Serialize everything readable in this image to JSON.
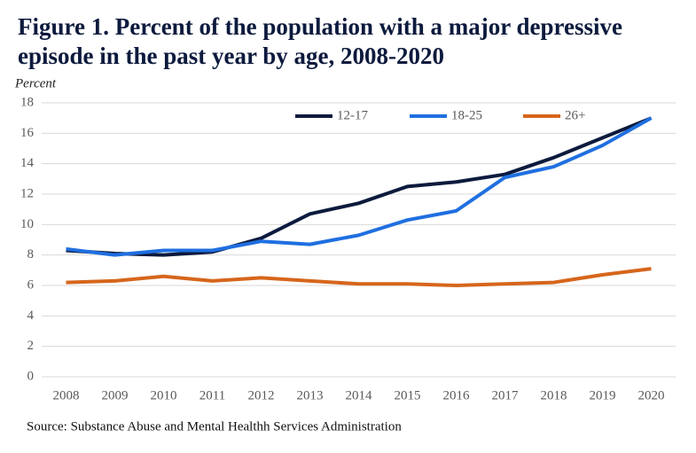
{
  "chart_data": {
    "type": "line",
    "title": "Figure 1. Percent of the population with a major depressive episode in the past year by age, 2008-2020",
    "y_label": "Percent",
    "source": "Source: Substance Abuse and Mental Healthh Services Administration",
    "categories": [
      "2008",
      "2009",
      "2010",
      "2011",
      "2012",
      "2013",
      "2014",
      "2015",
      "2016",
      "2017",
      "2018",
      "2019",
      "2020"
    ],
    "series": [
      {
        "name": "12-17",
        "color": "#0c1a3d",
        "values": [
          8.3,
          8.1,
          8.0,
          8.2,
          9.1,
          10.7,
          11.4,
          12.5,
          12.8,
          13.3,
          14.4,
          15.7,
          17.0
        ]
      },
      {
        "name": "18-25",
        "color": "#1f6fe0",
        "values": [
          8.4,
          8.0,
          8.3,
          8.3,
          8.9,
          8.7,
          9.3,
          10.3,
          10.9,
          13.1,
          13.8,
          15.2,
          17.0
        ]
      },
      {
        "name": "26+",
        "color": "#d6661c",
        "values": [
          6.2,
          6.3,
          6.6,
          6.3,
          6.5,
          6.3,
          6.1,
          6.1,
          6.0,
          6.1,
          6.2,
          6.7,
          7.1
        ]
      }
    ],
    "ylim": [
      0,
      18
    ],
    "yticks": [
      0,
      2,
      4,
      6,
      8,
      10,
      12,
      14,
      16,
      18
    ],
    "grid": true,
    "legend": "top"
  }
}
